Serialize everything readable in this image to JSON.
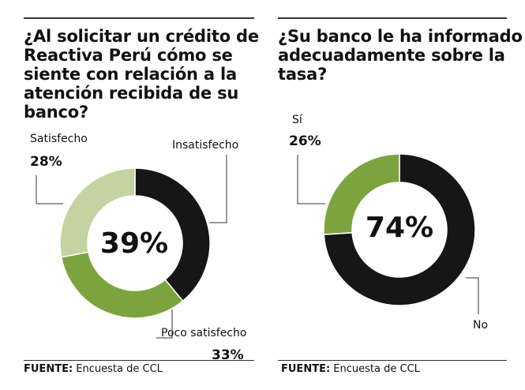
{
  "chart_data": [
    {
      "type": "pie",
      "title_lines": [
        "¿Al solicitar un crédito de",
        "Reactiva Perú cómo se",
        "siente con relación a la",
        "atención recibida de su",
        "banco?"
      ],
      "center_label": "39%",
      "slices": [
        {
          "label": "Insatisfecho",
          "value": 39,
          "color": "#161616"
        },
        {
          "label": "Poco satisfecho",
          "value": 33,
          "color": "#7ca43e",
          "pct_label": "33%"
        },
        {
          "label": "Satisfecho",
          "value": 28,
          "color": "#c4d3a2",
          "pct_label": "28%"
        }
      ],
      "source_label": "FUENTE:",
      "source_text": "Encuesta de CCL"
    },
    {
      "type": "pie",
      "title_lines": [
        "¿Su banco le ha informado",
        "adecuadamente sobre la",
        "tasa?"
      ],
      "center_label": "74%",
      "slices": [
        {
          "label": "No",
          "value": 74,
          "color": "#161616"
        },
        {
          "label": "Sí",
          "value": 26,
          "color": "#7ca43e",
          "pct_label": "26%"
        }
      ],
      "source_label": "FUENTE:",
      "source_text": "Encuesta de CCL"
    }
  ]
}
